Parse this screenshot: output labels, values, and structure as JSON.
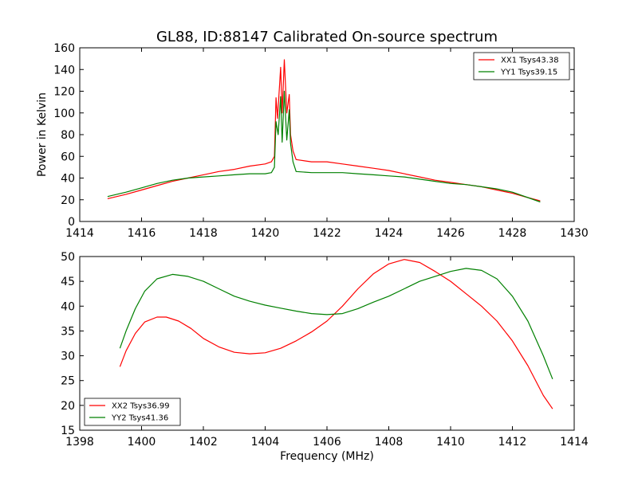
{
  "chart_data": [
    {
      "type": "line",
      "title": "GL88, ID:88147 Calibrated On-source spectrum",
      "xlabel": "",
      "ylabel": "Power in Kelvin",
      "xlim": [
        1414,
        1430
      ],
      "ylim": [
        0,
        160
      ],
      "xticks": [
        "1414",
        "1416",
        "1418",
        "1420",
        "1422",
        "1424",
        "1426",
        "1428",
        "1430"
      ],
      "yticks": [
        "0",
        "20",
        "40",
        "60",
        "80",
        "100",
        "120",
        "140",
        "160"
      ],
      "grid": false,
      "legend_position": "top-right",
      "series": [
        {
          "name": "XX1 Tsys43.38",
          "color": "#ff0000",
          "points": [
            [
              1414.9,
              21
            ],
            [
              1415.5,
              25
            ],
            [
              1416,
              29
            ],
            [
              1416.5,
              33
            ],
            [
              1417,
              37
            ],
            [
              1417.5,
              40
            ],
            [
              1418,
              43
            ],
            [
              1418.5,
              46
            ],
            [
              1419,
              48
            ],
            [
              1419.5,
              51
            ],
            [
              1420,
              53
            ],
            [
              1420.2,
              55
            ],
            [
              1420.3,
              60
            ],
            [
              1420.35,
              114
            ],
            [
              1420.4,
              95
            ],
            [
              1420.5,
              142
            ],
            [
              1420.55,
              100
            ],
            [
              1420.62,
              149
            ],
            [
              1420.7,
              100
            ],
            [
              1420.78,
              117
            ],
            [
              1420.82,
              80
            ],
            [
              1420.9,
              65
            ],
            [
              1421,
              57
            ],
            [
              1421.5,
              55
            ],
            [
              1422,
              55
            ],
            [
              1422.5,
              53
            ],
            [
              1423,
              51
            ],
            [
              1423.5,
              49
            ],
            [
              1424,
              47
            ],
            [
              1424.5,
              44
            ],
            [
              1425,
              41
            ],
            [
              1425.5,
              38
            ],
            [
              1426,
              36
            ],
            [
              1426.5,
              34
            ],
            [
              1427,
              32
            ],
            [
              1427.5,
              29
            ],
            [
              1428,
              26
            ],
            [
              1428.5,
              22
            ],
            [
              1428.9,
              19
            ]
          ]
        },
        {
          "name": "YY1 Tsys39.15",
          "color": "#008000",
          "points": [
            [
              1414.9,
              23
            ],
            [
              1415.5,
              27
            ],
            [
              1416,
              31
            ],
            [
              1416.5,
              35
            ],
            [
              1417,
              38
            ],
            [
              1417.5,
              40
            ],
            [
              1418,
              41
            ],
            [
              1418.5,
              42
            ],
            [
              1419,
              43
            ],
            [
              1419.5,
              44
            ],
            [
              1420,
              44
            ],
            [
              1420.2,
              45
            ],
            [
              1420.3,
              50
            ],
            [
              1420.35,
              92
            ],
            [
              1420.42,
              80
            ],
            [
              1420.5,
              115
            ],
            [
              1420.55,
              73
            ],
            [
              1420.62,
              120
            ],
            [
              1420.7,
              75
            ],
            [
              1420.78,
              103
            ],
            [
              1420.82,
              72
            ],
            [
              1420.9,
              55
            ],
            [
              1421,
              46
            ],
            [
              1421.5,
              45
            ],
            [
              1422,
              45
            ],
            [
              1422.5,
              45
            ],
            [
              1423,
              44
            ],
            [
              1423.5,
              43
            ],
            [
              1424,
              42
            ],
            [
              1424.5,
              41
            ],
            [
              1425,
              39
            ],
            [
              1425.5,
              37
            ],
            [
              1426,
              35
            ],
            [
              1426.5,
              34
            ],
            [
              1427,
              32
            ],
            [
              1427.5,
              30
            ],
            [
              1428,
              27
            ],
            [
              1428.5,
              22
            ],
            [
              1428.9,
              18
            ]
          ]
        }
      ]
    },
    {
      "type": "line",
      "title": "",
      "xlabel": "Frequency (MHz)",
      "ylabel": "",
      "xlim": [
        1398,
        1414
      ],
      "ylim": [
        15,
        50
      ],
      "xticks": [
        "1398",
        "1400",
        "1402",
        "1404",
        "1406",
        "1408",
        "1410",
        "1412",
        "1414"
      ],
      "yticks": [
        "15",
        "20",
        "25",
        "30",
        "35",
        "40",
        "45",
        "50"
      ],
      "grid": false,
      "legend_position": "bottom-left",
      "series": [
        {
          "name": "XX2 Tsys36.99",
          "color": "#ff0000",
          "points": [
            [
              1399.3,
              27.8
            ],
            [
              1399.5,
              31
            ],
            [
              1399.8,
              34.5
            ],
            [
              1400.1,
              36.8
            ],
            [
              1400.5,
              37.8
            ],
            [
              1400.8,
              37.8
            ],
            [
              1401.2,
              37
            ],
            [
              1401.6,
              35.5
            ],
            [
              1402,
              33.5
            ],
            [
              1402.5,
              31.8
            ],
            [
              1403,
              30.7
            ],
            [
              1403.5,
              30.4
            ],
            [
              1404,
              30.6
            ],
            [
              1404.5,
              31.5
            ],
            [
              1405,
              33
            ],
            [
              1405.5,
              34.8
            ],
            [
              1406,
              37
            ],
            [
              1406.5,
              40
            ],
            [
              1407,
              43.5
            ],
            [
              1407.5,
              46.5
            ],
            [
              1408,
              48.5
            ],
            [
              1408.5,
              49.4
            ],
            [
              1409,
              48.8
            ],
            [
              1409.5,
              47
            ],
            [
              1410,
              45
            ],
            [
              1410.5,
              42.5
            ],
            [
              1411,
              40
            ],
            [
              1411.5,
              37
            ],
            [
              1412,
              33
            ],
            [
              1412.5,
              28
            ],
            [
              1413,
              22
            ],
            [
              1413.3,
              19.3
            ]
          ]
        },
        {
          "name": "YY2 Tsys41.36",
          "color": "#008000",
          "points": [
            [
              1399.3,
              31.5
            ],
            [
              1399.5,
              35
            ],
            [
              1399.8,
              39.5
            ],
            [
              1400.1,
              43
            ],
            [
              1400.5,
              45.5
            ],
            [
              1401,
              46.4
            ],
            [
              1401.5,
              46
            ],
            [
              1402,
              45
            ],
            [
              1402.5,
              43.5
            ],
            [
              1403,
              42
            ],
            [
              1403.5,
              41
            ],
            [
              1404,
              40.2
            ],
            [
              1404.5,
              39.6
            ],
            [
              1405,
              39
            ],
            [
              1405.5,
              38.5
            ],
            [
              1406,
              38.3
            ],
            [
              1406.5,
              38.5
            ],
            [
              1407,
              39.5
            ],
            [
              1407.5,
              40.8
            ],
            [
              1408,
              42
            ],
            [
              1408.5,
              43.5
            ],
            [
              1409,
              45
            ],
            [
              1409.5,
              46
            ],
            [
              1410,
              47
            ],
            [
              1410.5,
              47.6
            ],
            [
              1411,
              47.2
            ],
            [
              1411.5,
              45.5
            ],
            [
              1412,
              42
            ],
            [
              1412.5,
              37
            ],
            [
              1413,
              30
            ],
            [
              1413.3,
              25.3
            ]
          ]
        }
      ]
    }
  ]
}
